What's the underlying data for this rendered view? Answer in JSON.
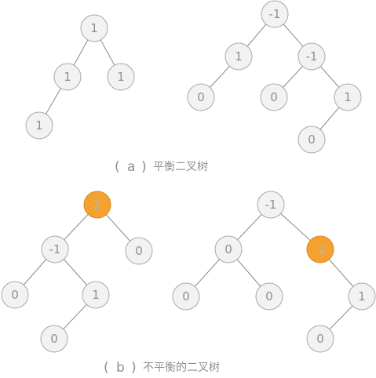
{
  "captions": {
    "a": {
      "open": "(",
      "letter": "a",
      "close": ")",
      "text": "平衡二叉树"
    },
    "b": {
      "open": "(",
      "letter": "b",
      "close": ")",
      "text": "不平衡的二叉树"
    }
  },
  "highlight_color": "#f4a12f",
  "trees": [
    {
      "id": "a-left",
      "nodes": [
        {
          "id": "n1",
          "label": "1"
        },
        {
          "id": "n2",
          "label": "1"
        },
        {
          "id": "n3",
          "label": "1"
        },
        {
          "id": "n4",
          "label": "1"
        }
      ],
      "edges": [
        [
          "n1",
          "n2"
        ],
        [
          "n1",
          "n3"
        ],
        [
          "n2",
          "n4"
        ]
      ]
    },
    {
      "id": "a-right",
      "nodes": [
        {
          "id": "m1",
          "label": "-1"
        },
        {
          "id": "m2",
          "label": "1"
        },
        {
          "id": "m3",
          "label": "-1"
        },
        {
          "id": "m4",
          "label": "0"
        },
        {
          "id": "m5",
          "label": "0"
        },
        {
          "id": "m6",
          "label": "1"
        },
        {
          "id": "m7",
          "label": "0"
        }
      ],
      "edges": [
        [
          "m1",
          "m2"
        ],
        [
          "m1",
          "m3"
        ],
        [
          "m2",
          "m4"
        ],
        [
          "m3",
          "m5"
        ],
        [
          "m3",
          "m6"
        ],
        [
          "m6",
          "m7"
        ]
      ]
    },
    {
      "id": "b-left",
      "nodes": [
        {
          "id": "p1",
          "label": "2",
          "highlight": true
        },
        {
          "id": "p2",
          "label": "-1"
        },
        {
          "id": "p3",
          "label": "0"
        },
        {
          "id": "p4",
          "label": "0"
        },
        {
          "id": "p5",
          "label": "1"
        },
        {
          "id": "p6",
          "label": "0"
        }
      ],
      "edges": [
        [
          "p1",
          "p2"
        ],
        [
          "p1",
          "p3"
        ],
        [
          "p2",
          "p4"
        ],
        [
          "p2",
          "p5"
        ],
        [
          "p5",
          "p6"
        ]
      ]
    },
    {
      "id": "b-right",
      "nodes": [
        {
          "id": "q1",
          "label": "-1"
        },
        {
          "id": "q2",
          "label": "0"
        },
        {
          "id": "q3",
          "label": "-2",
          "highlight": true
        },
        {
          "id": "q4",
          "label": "0"
        },
        {
          "id": "q5",
          "label": "0"
        },
        {
          "id": "q6",
          "label": "1"
        },
        {
          "id": "q7",
          "label": "0"
        }
      ],
      "edges": [
        [
          "q1",
          "q2"
        ],
        [
          "q1",
          "q3"
        ],
        [
          "q2",
          "q4"
        ],
        [
          "q2",
          "q5"
        ],
        [
          "q3",
          "q6"
        ],
        [
          "q6",
          "q7"
        ]
      ]
    }
  ]
}
